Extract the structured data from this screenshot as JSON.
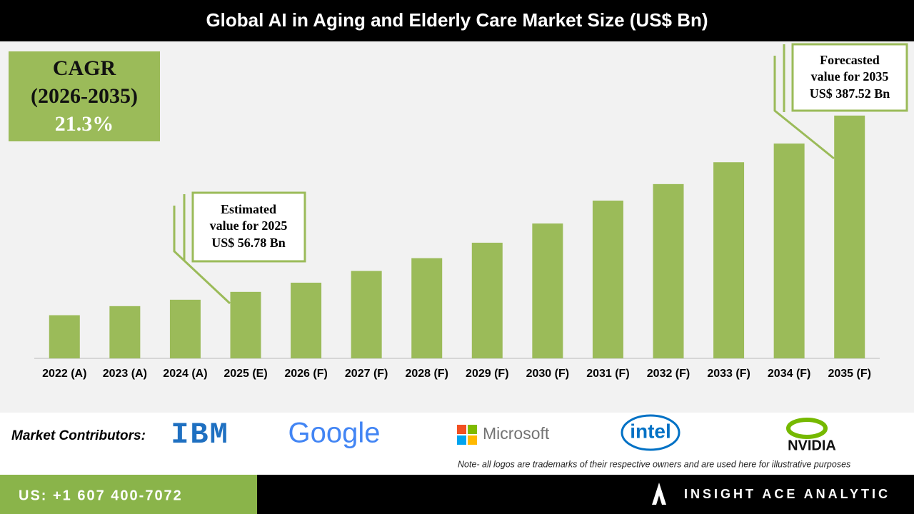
{
  "chart_data": {
    "type": "bar",
    "title": "Global AI in Aging and Elderly Care Market Size (US$ Bn)",
    "categories": [
      "2022 (A)",
      "2023 (A)",
      "2024 (A)",
      "2025 (E)",
      "2026 (F)",
      "2027 (F)",
      "2028 (F)",
      "2029 (F)",
      "2030 (F)",
      "2031 (F)",
      "2032 (F)",
      "2033 (F)",
      "2034 (F)",
      "2035 (F)"
    ],
    "values": [
      13,
      30,
      42,
      56.78,
      74,
      96,
      120,
      149,
      185,
      228,
      259,
      300,
      335,
      387.52
    ],
    "value_labels": [
      null,
      null,
      null,
      "US$ 56.78 Bn",
      null,
      null,
      null,
      null,
      null,
      null,
      null,
      null,
      null,
      "US$ 387.52 Bn"
    ],
    "callout_lines": [
      [
        "Estimated",
        "value for 2025"
      ],
      [
        "Forecasted",
        "value for 2035"
      ]
    ],
    "color": "#9bbb59",
    "ylim": [
      -68,
      524
    ],
    "cagr": {
      "label": "CAGR",
      "period": "(2026-2035)",
      "value": "21.3%"
    }
  },
  "contributors": {
    "label": "Market Contributors:",
    "logos": [
      "IBM",
      "Google",
      "Microsoft",
      "intel",
      "NVIDIA"
    ],
    "note": "Note- all logos are trademarks of their respective owners and are used here for illustrative purposes"
  },
  "footer": {
    "phone": "US: +1 607 400-7072",
    "brand": "INSIGHT ACE ANALYTIC"
  }
}
